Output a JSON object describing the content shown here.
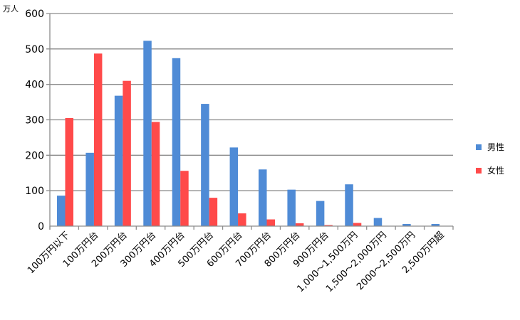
{
  "chart_data": {
    "type": "bar",
    "unit_label": "万人",
    "categories": [
      "100万円以下",
      "100万円台",
      "200万円台",
      "300万円台",
      "400万円台",
      "500万円台",
      "600万円台",
      "700万円台",
      "800万円台",
      "900万円台",
      "1,000～1,500万円",
      "1,500～2,000万円",
      "2000～2,500万円",
      "2,500万円超"
    ],
    "series": [
      {
        "name": "男性",
        "color": "#4f8bd6",
        "values": [
          86,
          207,
          368,
          523,
          474,
          345,
          222,
          160,
          103,
          71,
          118,
          23,
          6,
          6
        ]
      },
      {
        "name": "女性",
        "color": "#ff4a4a",
        "values": [
          305,
          487,
          410,
          294,
          156,
          80,
          36,
          19,
          8,
          3,
          9,
          0,
          0,
          0
        ]
      }
    ],
    "ylim": [
      0,
      600
    ],
    "yticks": [
      0,
      100,
      200,
      300,
      400,
      500,
      600
    ],
    "grid": true,
    "legend": "right"
  }
}
